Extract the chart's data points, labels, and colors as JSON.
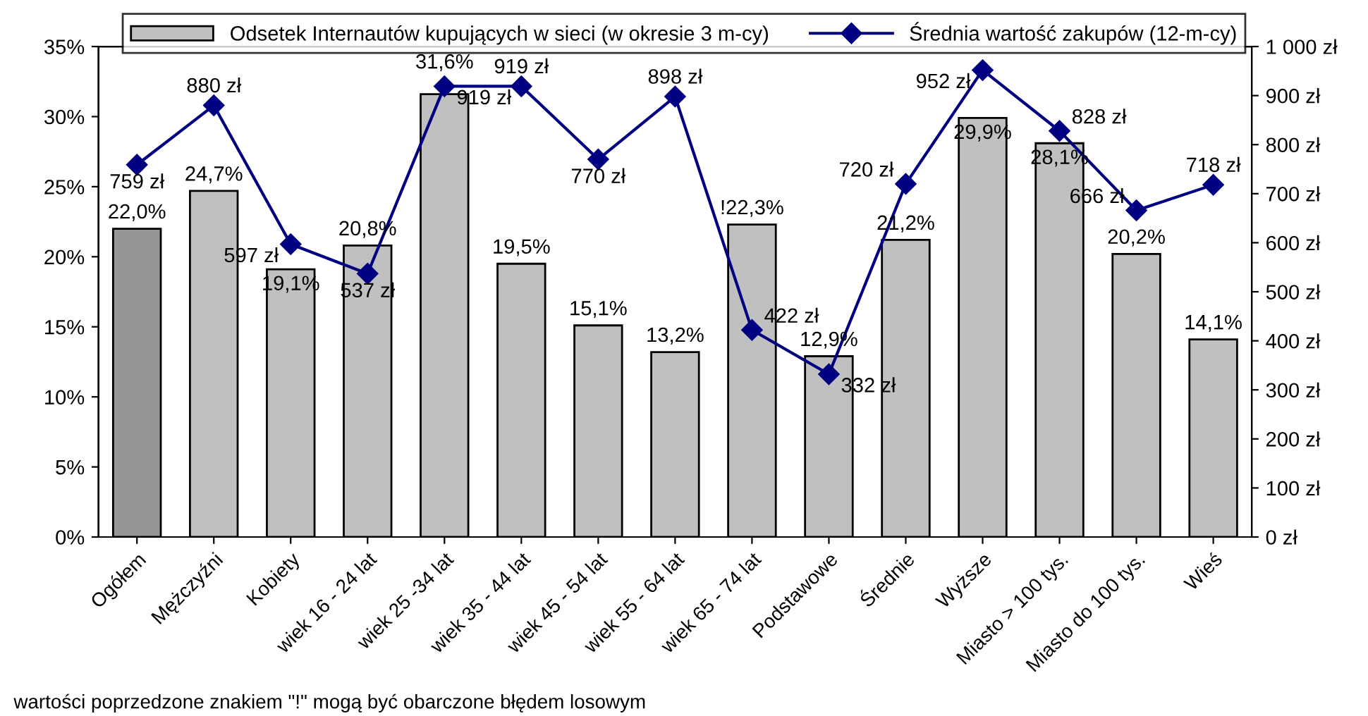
{
  "chart_data": {
    "type": "bar",
    "categories": [
      "Ogółem",
      "Mężczyźni",
      "Kobiety",
      "wiek 16 - 24 lat",
      "wiek 25 -34 lat",
      "wiek 35 - 44 lat",
      "wiek 45 - 54 lat",
      "wiek 55 - 64 lat",
      "wiek 65 - 74 lat",
      "Podstawowe",
      "Średnie",
      "Wyższe",
      "Miasto > 100 tys.",
      "Miasto do 100 tys.",
      "Wieś"
    ],
    "series": [
      {
        "name": "Odsetek Internautów kupujących w sieci (w okresie 3 m-cy)",
        "color": "#c0c0c0",
        "colors": [
          "#969696",
          "#c0c0c0",
          "#c0c0c0",
          "#c0c0c0",
          "#c0c0c0",
          "#c0c0c0",
          "#c0c0c0",
          "#c0c0c0",
          "#c0c0c0",
          "#c0c0c0",
          "#c0c0c0",
          "#c0c0c0",
          "#c0c0c0",
          "#c0c0c0",
          "#c0c0c0"
        ],
        "values": [
          22.0,
          24.7,
          19.1,
          20.8,
          31.6,
          19.5,
          15.1,
          13.2,
          22.3,
          12.9,
          21.2,
          29.9,
          28.1,
          20.2,
          14.1
        ],
        "value_labels": [
          "22,0%",
          "24,7%",
          "19,1%",
          "20,8%",
          "31,6%",
          "19,5%",
          "15,1%",
          "13,2%",
          "!22,3%",
          "12,9%",
          "21,2%",
          "29,9%",
          "28,1%",
          "20,2%",
          "14,1%"
        ]
      },
      {
        "name": "Średnia wartość zakupów (12-m-cy)",
        "type": "line",
        "axis": "y2",
        "color": "#000080",
        "marker": "diamond",
        "line_style": "solid",
        "values": [
          759,
          880,
          597,
          537,
          919,
          919,
          770,
          898,
          422,
          332,
          720,
          952,
          828,
          666,
          718
        ],
        "value_labels": [
          "759 zł",
          "880 zł",
          "597 zł",
          "537 zł",
          "919 zł",
          "919 zł",
          "770 zł",
          "898 zł",
          "422 zł",
          "332 zł",
          "720 zł",
          "952 zł",
          "828 zł",
          "666 zł",
          "718 zł"
        ]
      }
    ],
    "ylim": [
      0,
      35
    ],
    "yticks": [
      {
        "value": 0,
        "label": "0%"
      },
      {
        "value": 5,
        "label": "5%"
      },
      {
        "value": 10,
        "label": "10%"
      },
      {
        "value": 15,
        "label": "15%"
      },
      {
        "value": 20,
        "label": "20%"
      },
      {
        "value": 25,
        "label": "25%"
      },
      {
        "value": 30,
        "label": "30%"
      },
      {
        "value": 35,
        "label": "35%"
      }
    ],
    "y2lim": [
      0,
      1000
    ],
    "y2ticks": [
      {
        "value": 0,
        "label": "0 zł"
      },
      {
        "value": 100,
        "label": "100 zł"
      },
      {
        "value": 200,
        "label": "200 zł"
      },
      {
        "value": 300,
        "label": "300 zł"
      },
      {
        "value": 400,
        "label": "400 zł"
      },
      {
        "value": 500,
        "label": "500 zł"
      },
      {
        "value": 600,
        "label": "600 zł"
      },
      {
        "value": 700,
        "label": "700 zł"
      },
      {
        "value": 800,
        "label": "800 zł"
      },
      {
        "value": 900,
        "label": "900 zł"
      },
      {
        "value": 1000,
        "label": "1 000 zł"
      }
    ],
    "grid": false,
    "legend": "top",
    "annotations": [
      "wartości poprzedzone znakiem \"!\" mogą być obarczone błędem losowym"
    ]
  }
}
